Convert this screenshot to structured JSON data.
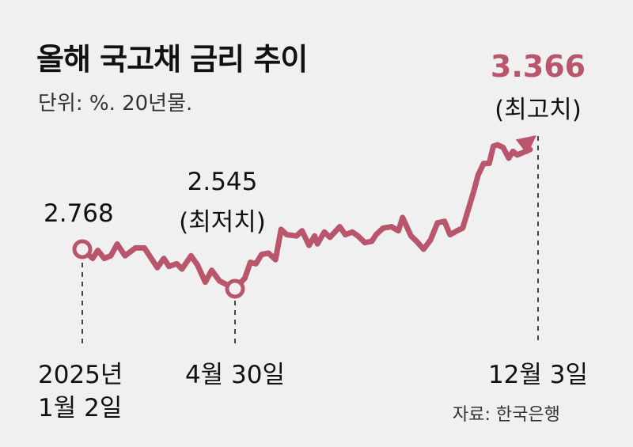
{
  "title": "올해 국고채 금리 추이",
  "subtitle": "단위: %. 20년물.",
  "source": "자료: 한국은행",
  "colors": {
    "line": "#b9566b",
    "background": "#f0f0f0",
    "text": "#111111"
  },
  "chart_data": {
    "type": "line",
    "title": "올해 국고채 금리 추이",
    "unit": "%",
    "grid": false,
    "annotations": {
      "start": {
        "date": "2025-01-02",
        "value": "2.768",
        "date_label_1": "2025년",
        "date_label_2": "1월 2일"
      },
      "min": {
        "date": "2025-04-30",
        "value": "2.545",
        "note": "(최저치)",
        "date_label": "4월 30일"
      },
      "max": {
        "date": "2025-12-03",
        "value": "3.366",
        "note": "(최고치)",
        "date_label": "12월 3일"
      }
    },
    "series": [
      {
        "x": [
          "2025-01-02",
          "2025-01-10",
          "2025-01-14",
          "2025-01-19",
          "2025-01-24",
          "2025-01-29",
          "2025-02-04",
          "2025-02-12",
          "2025-02-19",
          "2025-03-01",
          "2025-03-06",
          "2025-03-10",
          "2025-03-16",
          "2025-03-20",
          "2025-03-27",
          "2025-04-01",
          "2025-04-07",
          "2025-04-12",
          "2025-04-18",
          "2025-04-30",
          "2025-05-07",
          "2025-05-11",
          "2025-05-15",
          "2025-05-19",
          "2025-05-24",
          "2025-05-29",
          "2025-06-02",
          "2025-06-06",
          "2025-06-13",
          "2025-06-17",
          "2025-06-22",
          "2025-06-26",
          "2025-06-28",
          "2025-07-03",
          "2025-07-07",
          "2025-07-14",
          "2025-07-18",
          "2025-07-23",
          "2025-07-27",
          "2025-08-01",
          "2025-08-06",
          "2025-08-09",
          "2025-08-14",
          "2025-08-20",
          "2025-08-25",
          "2025-08-28",
          "2025-09-03",
          "2025-09-07",
          "2025-09-12",
          "2025-09-17",
          "2025-09-22",
          "2025-09-27",
          "2025-10-01",
          "2025-10-06",
          "2025-10-10",
          "2025-10-14",
          "2025-10-18",
          "2025-10-21",
          "2025-10-25",
          "2025-10-29",
          "2025-11-01",
          "2025-11-04",
          "2025-11-08",
          "2025-11-12",
          "2025-11-15",
          "2025-11-18",
          "2025-12-03"
        ],
        "y": [
          2.768,
          2.716,
          2.761,
          2.716,
          2.731,
          2.797,
          2.731,
          2.775,
          2.775,
          2.664,
          2.716,
          2.671,
          2.686,
          2.656,
          2.731,
          2.679,
          2.582,
          2.649,
          2.589,
          2.545,
          2.604,
          2.694,
          2.686,
          2.738,
          2.746,
          2.709,
          2.88,
          2.85,
          2.843,
          2.872,
          2.79,
          2.843,
          2.798,
          2.865,
          2.835,
          2.895,
          2.85,
          2.865,
          2.843,
          2.805,
          2.813,
          2.85,
          2.887,
          2.895,
          2.872,
          2.947,
          2.843,
          2.813,
          2.768,
          2.82,
          2.917,
          2.925,
          2.85,
          2.872,
          2.887,
          2.991,
          3.096,
          3.185,
          3.252,
          3.252,
          3.349,
          3.357,
          3.342,
          3.282,
          3.32,
          3.3,
          3.366
        ]
      }
    ]
  }
}
